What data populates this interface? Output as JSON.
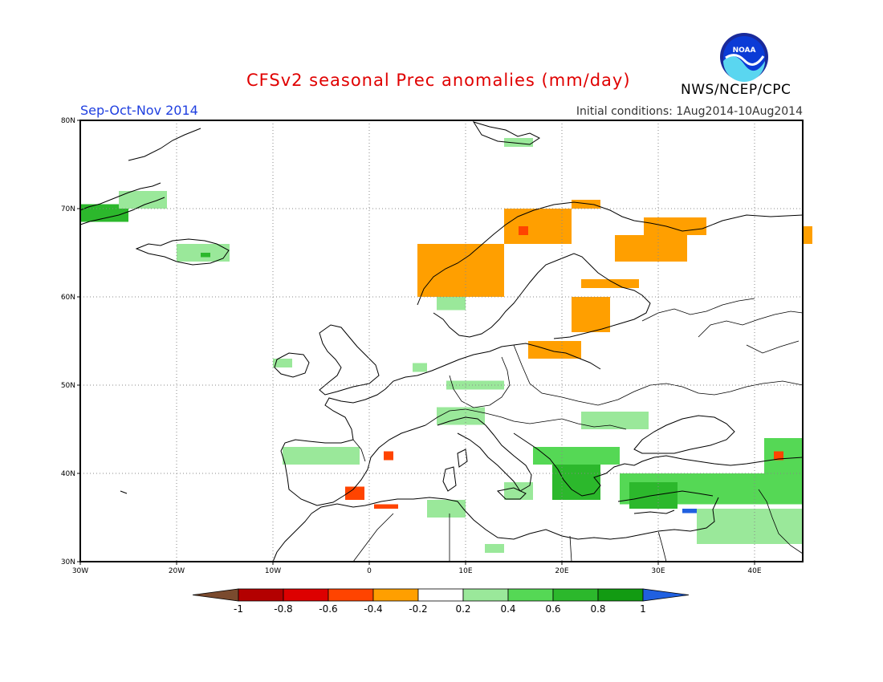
{
  "title": "CFSv2 seasonal Prec anomalies (mm/day)",
  "season": "Sep-Oct-Nov 2014",
  "initial_conditions": "Initial conditions: 1Aug2014-10Aug2014",
  "agency": "NWS/NCEP/CPC",
  "logo_text": "NOAA",
  "map": {
    "lon_range": [
      -30,
      45
    ],
    "lat_range": [
      30,
      80
    ],
    "lon_ticks": [
      {
        "value": -30,
        "label": "30W"
      },
      {
        "value": -20,
        "label": "20W"
      },
      {
        "value": -10,
        "label": "10W"
      },
      {
        "value": 0,
        "label": "0"
      },
      {
        "value": 10,
        "label": "10E"
      },
      {
        "value": 20,
        "label": "20E"
      },
      {
        "value": 30,
        "label": "30E"
      },
      {
        "value": 40,
        "label": "40E"
      }
    ],
    "lat_ticks": [
      {
        "value": 30,
        "label": "30N"
      },
      {
        "value": 40,
        "label": "40N"
      },
      {
        "value": 50,
        "label": "50N"
      },
      {
        "value": 60,
        "label": "60N"
      },
      {
        "value": 70,
        "label": "70N"
      },
      {
        "value": 80,
        "label": "80N"
      }
    ],
    "grid": "dotted"
  },
  "colorbar": {
    "ticks": [
      "-1",
      "-0.8",
      "-0.6",
      "-0.4",
      "-0.2",
      "0.2",
      "0.4",
      "0.6",
      "0.8",
      "1"
    ],
    "colors": [
      "#7a4a2e",
      "#b30000",
      "#dd0000",
      "#ff4400",
      "#ff9f00",
      "#ffffff",
      "#9ae89a",
      "#55d855",
      "#2cb82c",
      "#129b12",
      "#2060e0"
    ]
  },
  "anomaly_regions": [
    {
      "name": "Greenland east coast",
      "value": 0.6,
      "lon": [
        -30,
        -25
      ],
      "lat": [
        68.5,
        70.5
      ]
    },
    {
      "name": "Greenland coast north",
      "value": 0.3,
      "lon": [
        -26,
        -21
      ],
      "lat": [
        70,
        72
      ]
    },
    {
      "name": "Iceland",
      "value": 0.3,
      "lon": [
        -20,
        -14.5
      ],
      "lat": [
        64,
        66
      ]
    },
    {
      "name": "Iceland centre",
      "value": 0.6,
      "lon": [
        -17.5,
        -16.5
      ],
      "lat": [
        64.5,
        65
      ]
    },
    {
      "name": "Norway coast",
      "value": -0.3,
      "lon": [
        5,
        14
      ],
      "lat": [
        60,
        66
      ]
    },
    {
      "name": "Northern Norway",
      "value": -0.3,
      "lon": [
        14,
        21
      ],
      "lat": [
        66,
        70
      ]
    },
    {
      "name": "Lofoten",
      "value": -0.5,
      "lon": [
        15.5,
        16.5
      ],
      "lat": [
        67,
        68
      ]
    },
    {
      "name": "Finnmark",
      "value": -0.3,
      "lon": [
        21,
        24
      ],
      "lat": [
        70,
        71
      ]
    },
    {
      "name": "Kola",
      "value": -0.3,
      "lon": [
        28.5,
        35
      ],
      "lat": [
        67,
        69
      ]
    },
    {
      "name": "Karelia",
      "value": -0.3,
      "lon": [
        25.5,
        33
      ],
      "lat": [
        64,
        67
      ]
    },
    {
      "name": "Karelia south",
      "value": -0.3,
      "lon": [
        22,
        28
      ],
      "lat": [
        61,
        62
      ]
    },
    {
      "name": "Baltic",
      "value": -0.3,
      "lon": [
        21,
        25
      ],
      "lat": [
        56,
        60
      ]
    },
    {
      "name": "Poland Belarus",
      "value": -0.3,
      "lon": [
        16.5,
        22
      ],
      "lat": [
        53,
        55
      ]
    },
    {
      "name": "Arkhangelsk",
      "value": -0.3,
      "lon": [
        45,
        46
      ],
      "lat": [
        66,
        68
      ]
    },
    {
      "name": "Svalbard",
      "value": 0.3,
      "lon": [
        14,
        17
      ],
      "lat": [
        77,
        78
      ]
    },
    {
      "name": "Sweden south",
      "value": 0.3,
      "lon": [
        7,
        10
      ],
      "lat": [
        58.5,
        60
      ]
    },
    {
      "name": "Ireland",
      "value": 0.3,
      "lon": [
        -10,
        -8
      ],
      "lat": [
        52,
        53
      ]
    },
    {
      "name": "Benelux",
      "value": 0.3,
      "lon": [
        4.5,
        6
      ],
      "lat": [
        51.5,
        52.5
      ]
    },
    {
      "name": "Germany",
      "value": 0.3,
      "lon": [
        8,
        14
      ],
      "lat": [
        49.5,
        50.5
      ]
    },
    {
      "name": "Alps",
      "value": 0.3,
      "lon": [
        7,
        12
      ],
      "lat": [
        45.5,
        47.5
      ]
    },
    {
      "name": "Spain north",
      "value": 0.3,
      "lon": [
        -9,
        -1
      ],
      "lat": [
        41,
        43
      ]
    },
    {
      "name": "Spain south",
      "value": -0.5,
      "lon": [
        -2.5,
        -0.5
      ],
      "lat": [
        37,
        38.5
      ]
    },
    {
      "name": "Spain east",
      "value": -0.5,
      "lon": [
        1.5,
        2.5
      ],
      "lat": [
        41.5,
        42.5
      ]
    },
    {
      "name": "Algeria coast",
      "value": -0.5,
      "lon": [
        0.5,
        3
      ],
      "lat": [
        36,
        36.5
      ]
    },
    {
      "name": "Tunisia",
      "value": 0.3,
      "lon": [
        6,
        10
      ],
      "lat": [
        35,
        37
      ]
    },
    {
      "name": "Libya",
      "value": 0.3,
      "lon": [
        12,
        14
      ],
      "lat": [
        31,
        32
      ]
    },
    {
      "name": "Hungary Romania",
      "value": 0.3,
      "lon": [
        22,
        29
      ],
      "lat": [
        45,
        47
      ]
    },
    {
      "name": "Balkans",
      "value": 0.5,
      "lon": [
        17,
        26
      ],
      "lat": [
        41,
        43
      ]
    },
    {
      "name": "Greece",
      "value": 0.7,
      "lon": [
        19,
        24
      ],
      "lat": [
        37,
        41
      ]
    },
    {
      "name": "Turkey",
      "value": 0.5,
      "lon": [
        26,
        45
      ],
      "lat": [
        36.5,
        40
      ]
    },
    {
      "name": "Turkey west",
      "value": 0.7,
      "lon": [
        27,
        32
      ],
      "lat": [
        36,
        39
      ]
    },
    {
      "name": "Cyprus SE Turkey",
      "value": 1.0,
      "lon": [
        32.5,
        34
      ],
      "lat": [
        35.5,
        36
      ]
    },
    {
      "name": "Levant",
      "value": 0.3,
      "lon": [
        34,
        45
      ],
      "lat": [
        32,
        36
      ]
    },
    {
      "name": "Caucasus",
      "value": 0.5,
      "lon": [
        41,
        45
      ],
      "lat": [
        40,
        44
      ]
    },
    {
      "name": "Georgia",
      "value": -0.5,
      "lon": [
        42,
        43
      ],
      "lat": [
        41.5,
        42.5
      ]
    },
    {
      "name": "Italy south",
      "value": 0.3,
      "lon": [
        14,
        17
      ],
      "lat": [
        37,
        39
      ]
    }
  ]
}
